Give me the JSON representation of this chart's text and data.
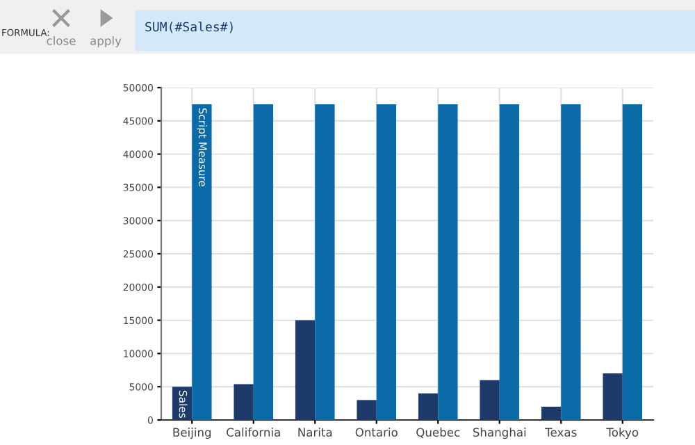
{
  "chart_data": {
    "type": "bar",
    "categories": [
      "Beijing",
      "California",
      "Narita",
      "Ontario",
      "Quebec",
      "Shanghai",
      "Texas",
      "Tokyo"
    ],
    "series": [
      {
        "name": "Sales",
        "color": "#1d3a6b",
        "values": [
          5000,
          5400,
          15000,
          3000,
          4000,
          6000,
          2000,
          7000
        ]
      },
      {
        "name": "Script Measure",
        "color": "#0b6aa8",
        "values": [
          47500,
          47500,
          47500,
          47500,
          47500,
          47500,
          47500,
          47500
        ]
      }
    ],
    "ylim": [
      0,
      50000
    ],
    "yticks": [
      0,
      5000,
      10000,
      15000,
      20000,
      25000,
      30000,
      35000,
      40000,
      45000,
      50000
    ],
    "grid": true,
    "annotations": [
      "FORMULA:",
      "close",
      "apply",
      "SUM(#Sales#)"
    ]
  }
}
